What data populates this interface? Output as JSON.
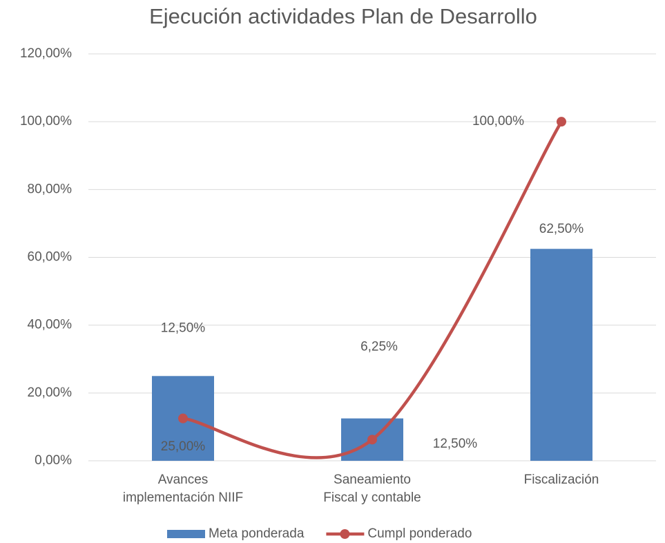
{
  "chart_data": {
    "type": "combo",
    "title": "Ejecución actividades Plan de Desarrollo",
    "categories": [
      "Avances implementación NIIF",
      "Saneamiento Fiscal y contable",
      "Fiscalización"
    ],
    "series": [
      {
        "name": "Meta ponderada",
        "type": "bar",
        "color": "#4f81bd",
        "values": [
          25,
          12.5,
          62.5
        ],
        "value_labels": [
          "25,00%",
          "12,50%",
          "62,50%"
        ]
      },
      {
        "name": "Cumpl ponderado",
        "type": "line",
        "color": "#c0504d",
        "smooth": true,
        "values": [
          12.5,
          6.25,
          100
        ],
        "value_labels": [
          "12,50%",
          "6,25%",
          "100,00%"
        ]
      }
    ],
    "ylim": [
      0,
      120
    ],
    "yticks": [
      {
        "value": 0,
        "label": "0,00%"
      },
      {
        "value": 20,
        "label": "20,00%"
      },
      {
        "value": 40,
        "label": "40,00%"
      },
      {
        "value": 60,
        "label": "60,00%"
      },
      {
        "value": 80,
        "label": "80,00%"
      },
      {
        "value": 100,
        "label": "100,00%"
      },
      {
        "value": 120,
        "label": "120,00%"
      }
    ],
    "grid": true,
    "legend": "bottom"
  }
}
